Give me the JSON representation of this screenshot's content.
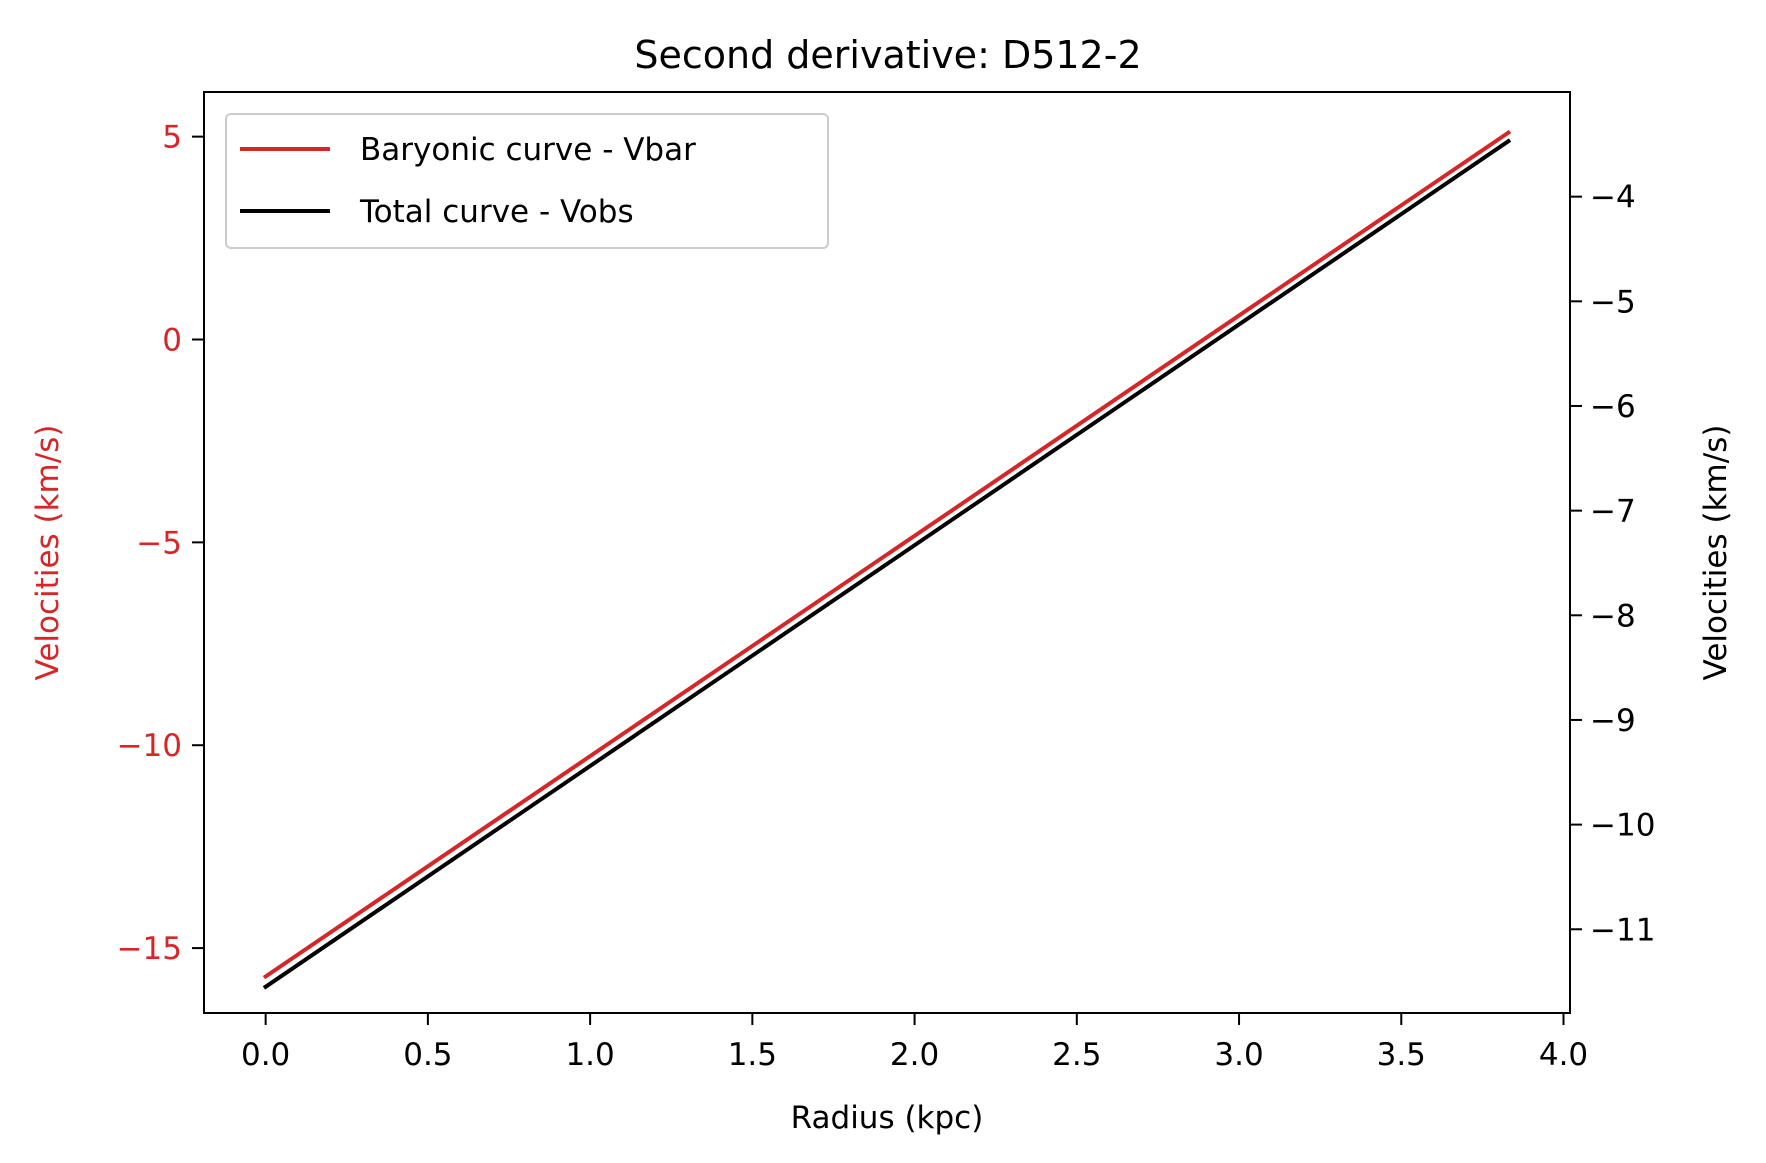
{
  "chart_data": {
    "type": "line",
    "title": "Second derivative: D512-2",
    "xlabel": "Radius (kpc)",
    "ylabel_left": "Velocities (km/s)",
    "ylabel_right": "Velocities (km/s)",
    "xlim": [
      -0.19,
      4.02
    ],
    "ylim_left": [
      -16.6,
      6.1
    ],
    "ylim_right": [
      -11.8,
      -3.0
    ],
    "x_ticks": [
      0.0,
      0.5,
      1.0,
      1.5,
      2.0,
      2.5,
      3.0,
      3.5,
      4.0
    ],
    "x_tick_labels": [
      "0.0",
      "0.5",
      "1.0",
      "1.5",
      "2.0",
      "2.5",
      "3.0",
      "3.5",
      "4.0"
    ],
    "y_left_ticks": [
      5,
      0,
      -5,
      -10,
      -15
    ],
    "y_left_tick_labels": [
      "5",
      "0",
      "−5",
      "−10",
      "−15"
    ],
    "y_right_ticks": [
      -4,
      -5,
      -6,
      -7,
      -8,
      -9,
      -10,
      -11
    ],
    "y_right_tick_labels": [
      "−4",
      "−5",
      "−6",
      "−7",
      "−8",
      "−9",
      "−10",
      "−11"
    ],
    "grid": false,
    "legend_position": "upper-left",
    "series": [
      {
        "name": "Baryonic curve - Vbar",
        "axis": "left",
        "color": "#d62728",
        "x": [
          0.0,
          3.83
        ],
        "y": [
          -15.7,
          5.1
        ]
      },
      {
        "name": "Total curve - Vobs",
        "axis": "right",
        "color": "#000000",
        "x": [
          0.0,
          3.83
        ],
        "y": [
          -11.55,
          -3.47
        ]
      }
    ],
    "left_axis_color": "#d62728",
    "right_axis_color": "#000000"
  }
}
